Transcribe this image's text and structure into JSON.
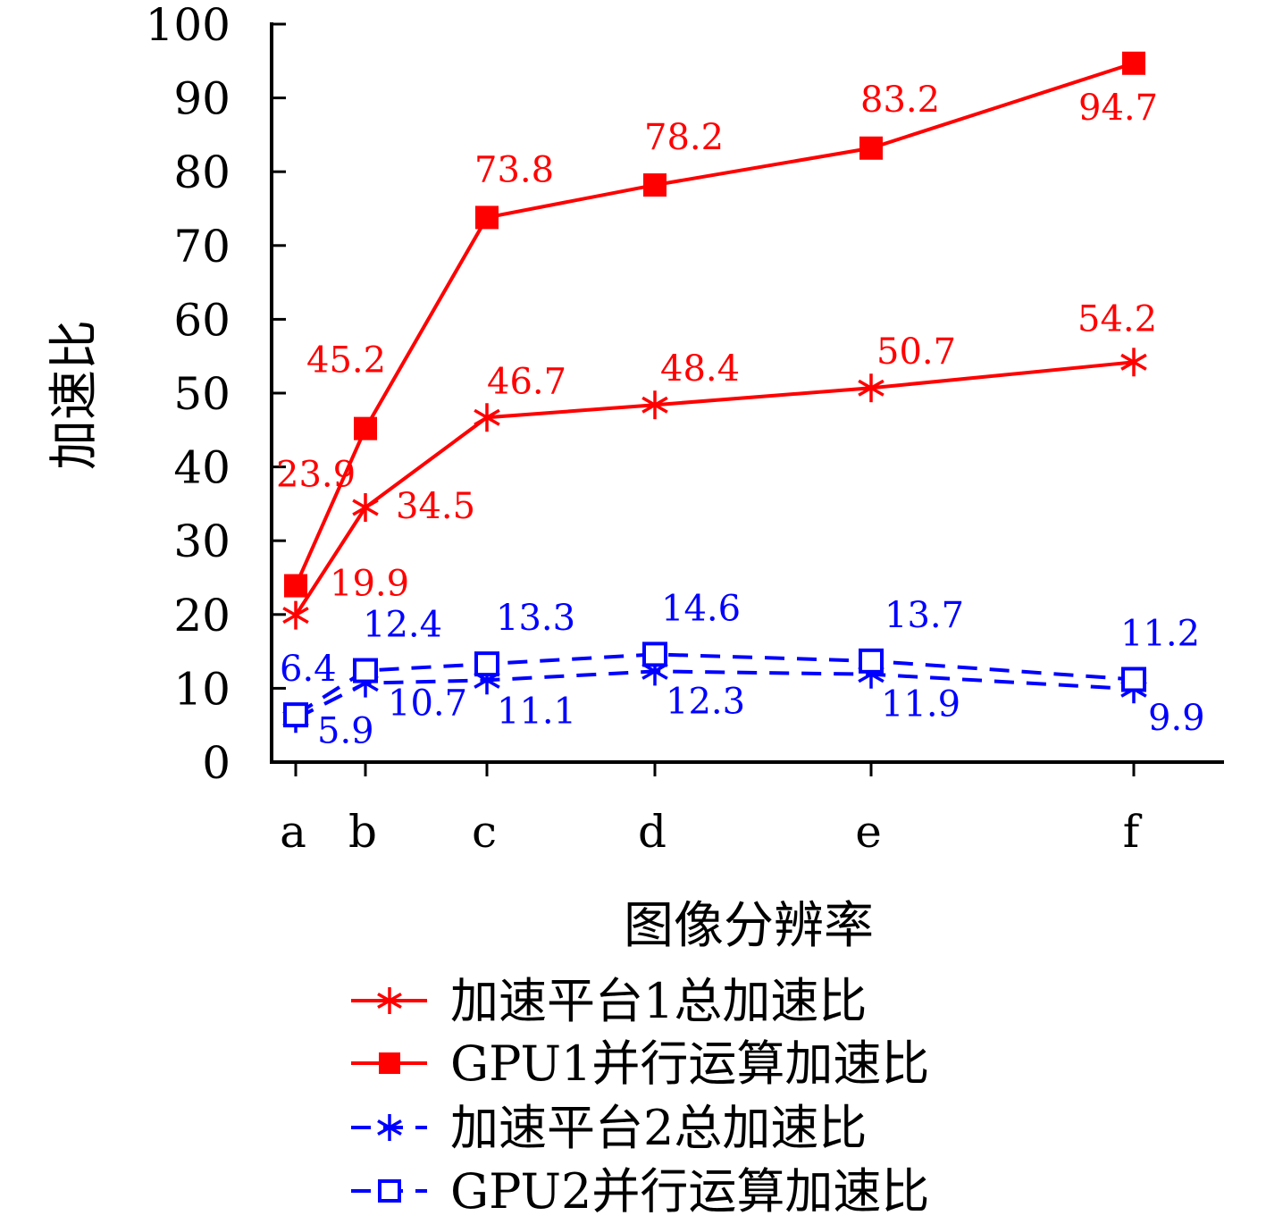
{
  "chart_data": {
    "type": "line",
    "xlabel": "图像分辨率",
    "ylabel": "加速比",
    "categories": [
      "a",
      "b",
      "c",
      "d",
      "e",
      "f"
    ],
    "ylim": [
      0,
      100
    ],
    "yticks": [
      0,
      10,
      20,
      30,
      40,
      50,
      60,
      70,
      80,
      90,
      100
    ],
    "grid": false,
    "legend_position": "bottom",
    "series": [
      {
        "name": "加速平台1总加速比",
        "values": [
          19.9,
          34.5,
          46.7,
          48.4,
          50.7,
          54.2
        ],
        "labels": [
          "19.9",
          "34.5",
          "46.7",
          "48.4",
          "50.7",
          "54.2"
        ],
        "color": "#ff0000",
        "marker": "asterisk",
        "dash": "solid"
      },
      {
        "name": "GPU1并行运算加速比",
        "values": [
          23.9,
          45.2,
          73.8,
          78.2,
          83.2,
          94.7
        ],
        "labels": [
          "23.9",
          "45.2",
          "73.8",
          "78.2",
          "83.2",
          "94.7"
        ],
        "color": "#ff0000",
        "marker": "filled-square",
        "dash": "solid"
      },
      {
        "name": "加速平台2总加速比",
        "values": [
          5.9,
          10.7,
          11.1,
          12.3,
          11.9,
          9.9
        ],
        "labels": [
          "5.9",
          "10.7",
          "11.1",
          "12.3",
          "11.9",
          "9.9"
        ],
        "color": "#0000ff",
        "marker": "asterisk",
        "dash": "dashed"
      },
      {
        "name": "GPU2并行运算加速比",
        "values": [
          6.4,
          12.4,
          13.3,
          14.6,
          13.7,
          11.2
        ],
        "labels": [
          "6.4",
          "12.4",
          "13.3",
          "14.6",
          "13.7",
          "11.2"
        ],
        "color": "#0000ff",
        "marker": "open-square",
        "dash": "dashed"
      }
    ]
  }
}
